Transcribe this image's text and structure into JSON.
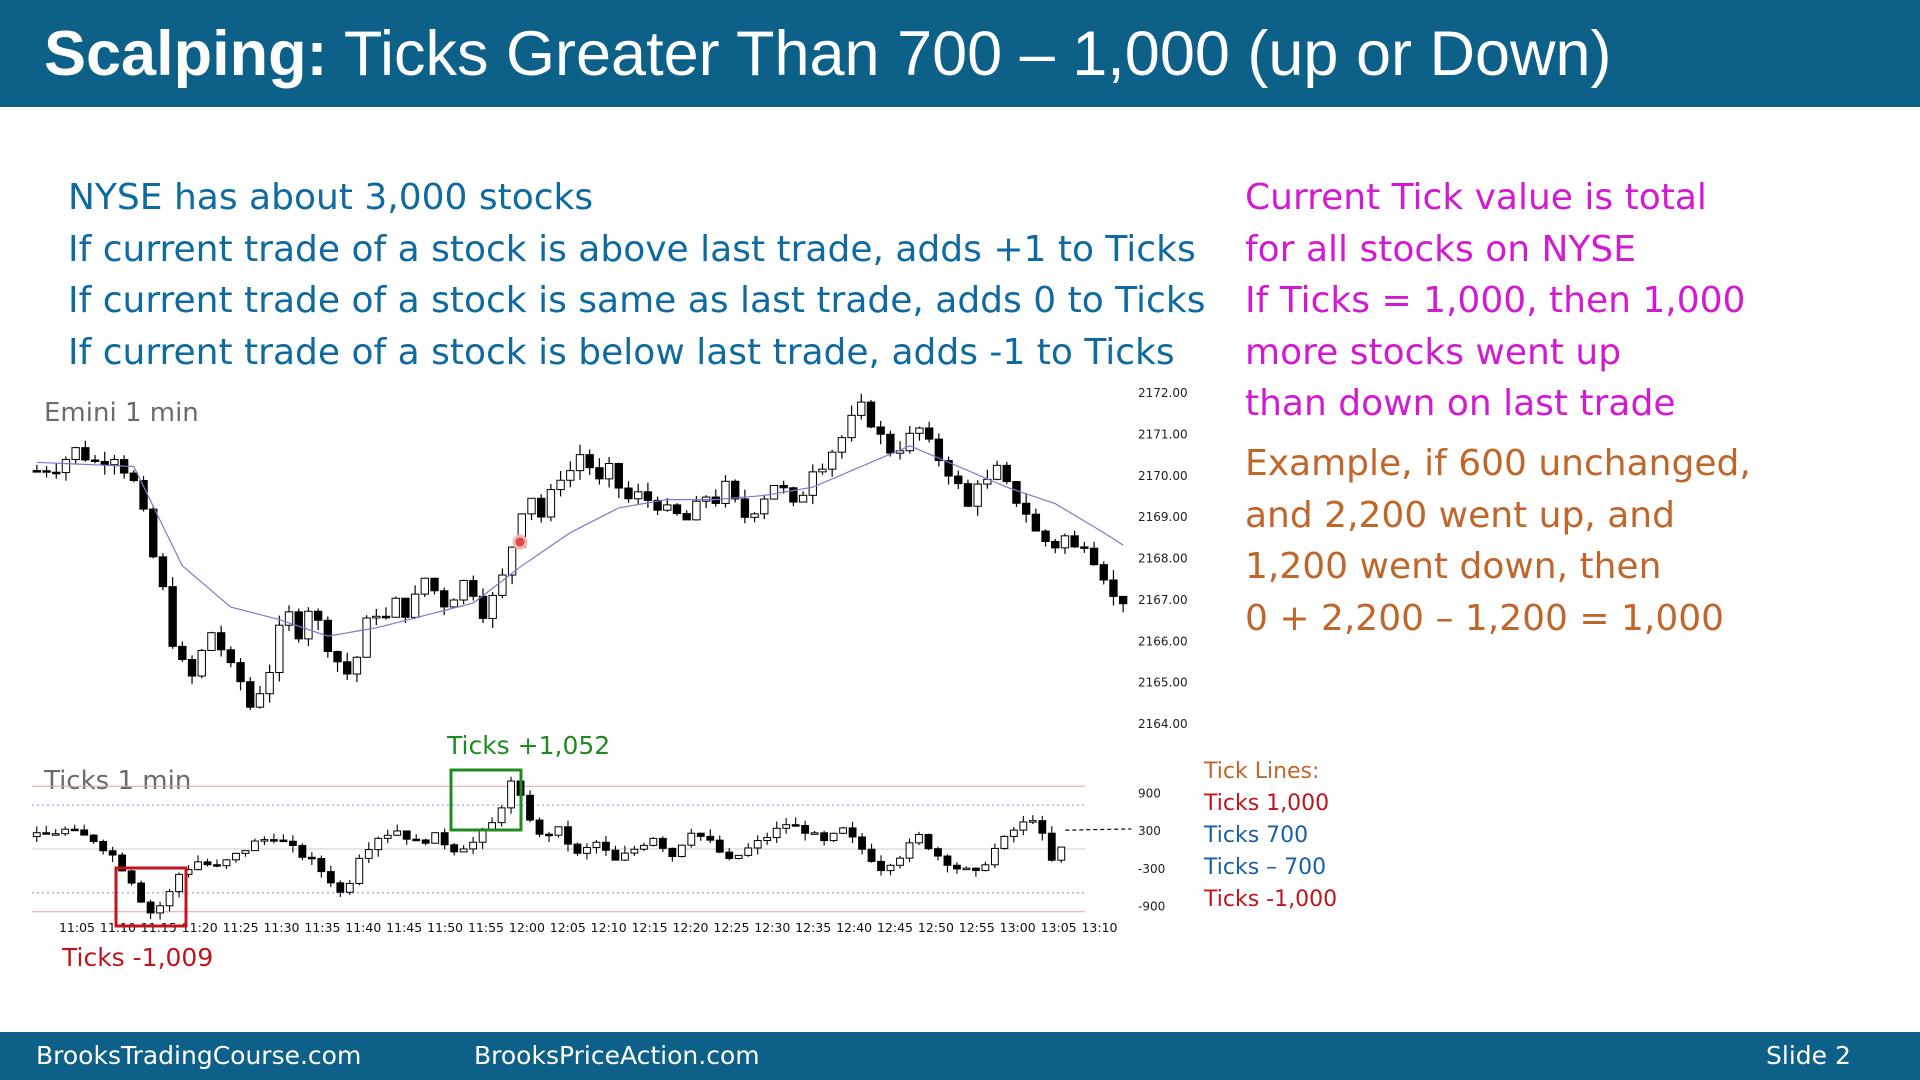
{
  "slide": {
    "title_bold": "Scalping:",
    "title_rest": " Ticks Greater Than 700 – 1,000 (up or Down)",
    "left_text": [
      "NYSE has about 3,000 stocks",
      "If current trade of a stock is above last trade, adds +1 to Ticks",
      "If current trade of a stock is same as last trade, adds 0 to Ticks",
      "If current trade of a stock is below last trade, adds -1 to Ticks"
    ],
    "right_text_magenta": [
      "Current Tick value is total",
      "for all stocks on NYSE",
      "If Ticks = 1,000, then 1,000",
      "more stocks went up",
      "than down on last trade"
    ],
    "right_text_orange": [
      "Example, if 600 unchanged,",
      "and 2,200 went up, and",
      "1,200 went down, then",
      "0 + 2,200 – 1,200 = 1,000"
    ],
    "legend": {
      "title": "Tick Lines:",
      "items": [
        {
          "label": "Ticks 1,000",
          "color": "#c0141c"
        },
        {
          "label": "Ticks 700",
          "color": "#1a5ea8"
        },
        {
          "label": "Ticks – 700",
          "color": "#1a5ea8"
        },
        {
          "label": "Ticks -1,000",
          "color": "#c0141c"
        }
      ],
      "title_color": "#c0662a"
    },
    "footer": {
      "left": "BrooksTradingCourse.com",
      "middle": "BrooksPriceAction.com",
      "right": "Slide  2"
    }
  },
  "chart_data": [
    {
      "type": "candlestick",
      "title": "Emini 1 min",
      "y_ticks": [
        "2172.00",
        "2171.00",
        "2170.00",
        "2169.00",
        "2168.00",
        "2167.00",
        "2166.00",
        "2165.00",
        "2164.00"
      ],
      "ylim": [
        2164,
        2172
      ],
      "x_range": [
        "11:03",
        "13:10"
      ],
      "close_path": [
        [
          0,
          2170.1
        ],
        [
          2,
          2170.2
        ],
        [
          4,
          2170.6
        ],
        [
          6,
          2170.3
        ],
        [
          8,
          2170.5
        ],
        [
          10,
          2169.8
        ],
        [
          11,
          2169.0
        ],
        [
          12,
          2168.0
        ],
        [
          13,
          2167.2
        ],
        [
          14,
          2166.0
        ],
        [
          15,
          2165.4
        ],
        [
          16,
          2165.1
        ],
        [
          17,
          2165.7
        ],
        [
          18,
          2166.2
        ],
        [
          19,
          2165.8
        ],
        [
          20,
          2165.3
        ],
        [
          21,
          2165.0
        ],
        [
          22,
          2164.4
        ],
        [
          23,
          2164.8
        ],
        [
          24,
          2165.3
        ],
        [
          25,
          2166.2
        ],
        [
          26,
          2166.6
        ],
        [
          27,
          2166.2
        ],
        [
          28,
          2166.8
        ],
        [
          29,
          2166.4
        ],
        [
          30,
          2165.9
        ],
        [
          31,
          2165.5
        ],
        [
          32,
          2165.2
        ],
        [
          33,
          2165.6
        ],
        [
          34,
          2166.4
        ],
        [
          35,
          2166.7
        ],
        [
          36,
          2166.5
        ],
        [
          37,
          2166.9
        ],
        [
          38,
          2166.7
        ],
        [
          39,
          2167.0
        ],
        [
          40,
          2167.5
        ],
        [
          41,
          2167.2
        ],
        [
          42,
          2166.9
        ],
        [
          43,
          2167.1
        ],
        [
          44,
          2167.4
        ],
        [
          45,
          2167.2
        ],
        [
          46,
          2166.7
        ],
        [
          47,
          2167.0
        ],
        [
          48,
          2167.5
        ],
        [
          49,
          2168.3
        ],
        [
          50,
          2169.2
        ],
        [
          51,
          2169.5
        ],
        [
          52,
          2169.0
        ],
        [
          53,
          2169.5
        ],
        [
          54,
          2170.0
        ],
        [
          55,
          2170.1
        ],
        [
          56,
          2170.5
        ],
        [
          57,
          2170.2
        ],
        [
          58,
          2169.8
        ],
        [
          59,
          2170.1
        ],
        [
          60,
          2169.7
        ],
        [
          61,
          2169.4
        ],
        [
          62,
          2169.5
        ],
        [
          63,
          2169.4
        ],
        [
          64,
          2169.3
        ],
        [
          65,
          2169.1
        ],
        [
          66,
          2169.0
        ],
        [
          67,
          2168.9
        ],
        [
          68,
          2169.2
        ],
        [
          69,
          2169.5
        ],
        [
          70,
          2169.4
        ],
        [
          71,
          2169.7
        ],
        [
          72,
          2169.3
        ],
        [
          73,
          2169.0
        ],
        [
          74,
          2169.2
        ],
        [
          75,
          2169.5
        ],
        [
          76,
          2169.8
        ],
        [
          77,
          2169.6
        ],
        [
          78,
          2169.2
        ],
        [
          79,
          2169.6
        ],
        [
          80,
          2170.2
        ],
        [
          81,
          2170.3
        ],
        [
          82,
          2170.6
        ],
        [
          83,
          2170.9
        ],
        [
          84,
          2171.3
        ],
        [
          85,
          2171.6
        ],
        [
          86,
          2171.3
        ],
        [
          87,
          2170.9
        ],
        [
          88,
          2170.6
        ],
        [
          89,
          2170.7
        ],
        [
          90,
          2170.9
        ],
        [
          91,
          2171.1
        ],
        [
          92,
          2170.7
        ],
        [
          93,
          2170.4
        ],
        [
          94,
          2170.1
        ],
        [
          95,
          2169.7
        ],
        [
          96,
          2169.2
        ],
        [
          97,
          2169.9
        ],
        [
          98,
          2169.8
        ],
        [
          99,
          2170.1
        ],
        [
          100,
          2169.7
        ],
        [
          101,
          2169.4
        ],
        [
          102,
          2169.1
        ],
        [
          103,
          2168.6
        ],
        [
          104,
          2168.4
        ],
        [
          105,
          2168.3
        ],
        [
          106,
          2168.5
        ],
        [
          107,
          2168.2
        ],
        [
          108,
          2168.4
        ],
        [
          109,
          2168.0
        ],
        [
          110,
          2167.6
        ],
        [
          111,
          2167.0
        ],
        [
          112,
          2167.0
        ]
      ],
      "moving_average_path": [
        [
          0,
          2170.3
        ],
        [
          10,
          2170.2
        ],
        [
          15,
          2167.8
        ],
        [
          20,
          2166.8
        ],
        [
          25,
          2166.5
        ],
        [
          30,
          2166.1
        ],
        [
          35,
          2166.3
        ],
        [
          40,
          2166.6
        ],
        [
          45,
          2166.9
        ],
        [
          50,
          2167.8
        ],
        [
          55,
          2168.6
        ],
        [
          60,
          2169.2
        ],
        [
          65,
          2169.4
        ],
        [
          70,
          2169.4
        ],
        [
          75,
          2169.5
        ],
        [
          80,
          2169.7
        ],
        [
          85,
          2170.2
        ],
        [
          90,
          2170.7
        ],
        [
          95,
          2170.2
        ],
        [
          100,
          2169.7
        ],
        [
          105,
          2169.3
        ],
        [
          110,
          2168.6
        ],
        [
          112,
          2168.3
        ]
      ]
    },
    {
      "type": "candlestick",
      "title": "Ticks 1 min",
      "y_ticks": [
        "900",
        "300",
        "-300",
        "-900"
      ],
      "x_ticks": [
        "11:05",
        "11:10",
        "11:15",
        "11:20",
        "11:25",
        "11:30",
        "11:35",
        "11:40",
        "11:45",
        "11:50",
        "11:55",
        "12:00",
        "12:05",
        "12:10",
        "12:15",
        "12:20",
        "12:25",
        "12:30",
        "12:35",
        "12:40",
        "12:45",
        "12:50",
        "12:55",
        "13:00",
        "13:05",
        "13:10"
      ],
      "tick_lines": [
        {
          "value": 1000,
          "label": "Ticks 1,000"
        },
        {
          "value": 700,
          "label": "Ticks 700"
        },
        {
          "value": -700,
          "label": "Ticks – 700"
        },
        {
          "value": -1000,
          "label": "Ticks -1,000"
        }
      ],
      "ylim": [
        -1100,
        1100
      ],
      "path": [
        [
          0,
          200
        ],
        [
          3,
          300
        ],
        [
          6,
          150
        ],
        [
          8,
          -100
        ],
        [
          10,
          -500
        ],
        [
          11,
          -800
        ],
        [
          12,
          -1009
        ],
        [
          13,
          -900
        ],
        [
          14,
          -700
        ],
        [
          15,
          -400
        ],
        [
          17,
          -200
        ],
        [
          19,
          -300
        ],
        [
          21,
          -100
        ],
        [
          23,
          100
        ],
        [
          25,
          200
        ],
        [
          27,
          0
        ],
        [
          29,
          -200
        ],
        [
          31,
          -500
        ],
        [
          32,
          -700
        ],
        [
          33,
          -500
        ],
        [
          34,
          -100
        ],
        [
          36,
          200
        ],
        [
          38,
          300
        ],
        [
          40,
          100
        ],
        [
          42,
          200
        ],
        [
          44,
          0
        ],
        [
          46,
          100
        ],
        [
          48,
          400
        ],
        [
          49,
          700
        ],
        [
          50,
          1052
        ],
        [
          51,
          800
        ],
        [
          52,
          500
        ],
        [
          53,
          200
        ],
        [
          55,
          300
        ],
        [
          57,
          -100
        ],
        [
          59,
          100
        ],
        [
          61,
          -200
        ],
        [
          63,
          0
        ],
        [
          65,
          200
        ],
        [
          67,
          -100
        ],
        [
          69,
          300
        ],
        [
          71,
          100
        ],
        [
          73,
          -200
        ],
        [
          75,
          0
        ],
        [
          77,
          200
        ],
        [
          79,
          400
        ],
        [
          81,
          300
        ],
        [
          83,
          100
        ],
        [
          85,
          300
        ],
        [
          87,
          0
        ],
        [
          89,
          -300
        ],
        [
          91,
          -100
        ],
        [
          93,
          200
        ],
        [
          95,
          -100
        ],
        [
          97,
          -300
        ],
        [
          99,
          -400
        ],
        [
          101,
          0
        ],
        [
          103,
          300
        ],
        [
          105,
          500
        ],
        [
          106,
          200
        ],
        [
          107,
          -200
        ],
        [
          108,
          0
        ]
      ]
    }
  ],
  "annotations": {
    "ticks_high": {
      "label": "Ticks +1,052",
      "color": "#1f8a1f"
    },
    "ticks_low": {
      "label": "Ticks -1,009",
      "color": "#c0141c"
    }
  }
}
